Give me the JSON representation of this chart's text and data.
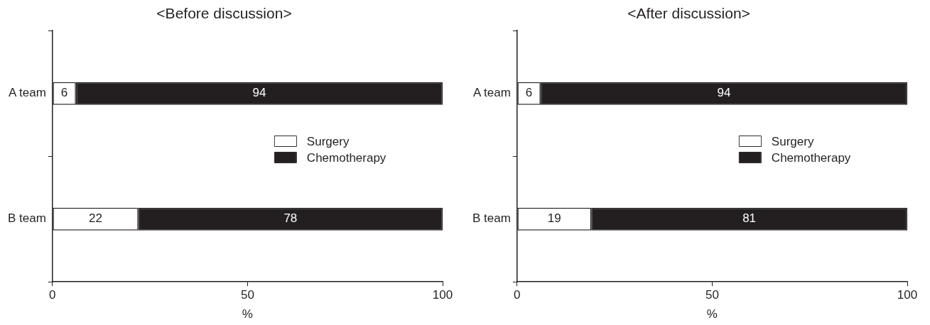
{
  "chart_data": [
    {
      "type": "bar",
      "title": "<Before discussion>",
      "orientation": "horizontal",
      "stacked": true,
      "categories": [
        "A team",
        "B team"
      ],
      "series": [
        {
          "name": "Surgery",
          "color": "#ffffff",
          "values": [
            6,
            22
          ]
        },
        {
          "name": "Chemotherapy",
          "color": "#231f20",
          "values": [
            94,
            78
          ]
        }
      ],
      "xlim": [
        0,
        100
      ],
      "xticks": [
        0,
        50,
        100
      ],
      "xlabel": "%",
      "data_labels": true,
      "legend": "right",
      "grid": false
    },
    {
      "type": "bar",
      "title": "<After discussion>",
      "orientation": "horizontal",
      "stacked": true,
      "categories": [
        "A team",
        "B team"
      ],
      "series": [
        {
          "name": "Surgery",
          "color": "#ffffff",
          "values": [
            6,
            19
          ]
        },
        {
          "name": "Chemotherapy",
          "color": "#231f20",
          "values": [
            94,
            81
          ]
        }
      ],
      "xlim": [
        0,
        100
      ],
      "xticks": [
        0,
        50,
        100
      ],
      "xlabel": "%",
      "data_labels": true,
      "legend": "right",
      "grid": false
    }
  ]
}
